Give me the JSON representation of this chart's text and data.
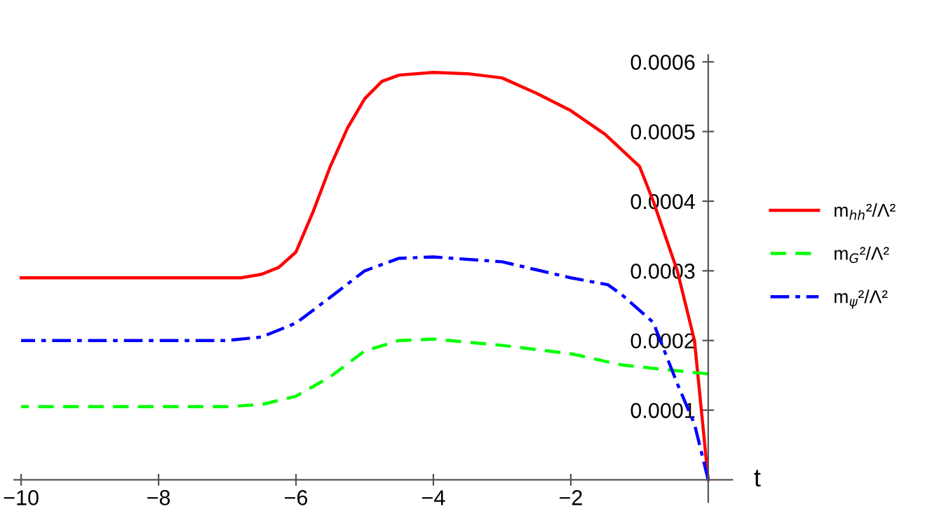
{
  "chart_data": {
    "type": "line",
    "xlabel": "t",
    "xlim": [
      -10.1,
      0.35
    ],
    "ylim": [
      -3.2e-05,
      0.00061
    ],
    "xticks": [
      {
        "value": -10,
        "label": "−10"
      },
      {
        "value": -8,
        "label": "−8"
      },
      {
        "value": -6,
        "label": "−6"
      },
      {
        "value": -4,
        "label": "−4"
      },
      {
        "value": -2,
        "label": "−2"
      }
    ],
    "yticks": [
      0.0001,
      0.0002,
      0.0003,
      0.0004,
      0.0005,
      0.0006
    ],
    "grid": false,
    "legend": "right",
    "marker": "none",
    "series": [
      {
        "name": "m$_{hh}$²/Λ²",
        "color": "#ff0000",
        "line_style": "solid",
        "x": [
          -10,
          -9,
          -8,
          -7,
          -6.8,
          -6.5,
          -6.25,
          -6,
          -5.75,
          -5.5,
          -5.25,
          -5,
          -4.75,
          -4.5,
          -4,
          -3.5,
          -3,
          -2.5,
          -2,
          -1.5,
          -1,
          -0.8,
          -0.45,
          -0.2,
          0
        ],
        "values": [
          0.00029,
          0.00029,
          0.00029,
          0.00029,
          0.00029,
          0.000295,
          0.000305,
          0.000327,
          0.000385,
          0.00045,
          0.000505,
          0.000547,
          0.000572,
          0.000581,
          0.000585,
          0.000583,
          0.000577,
          0.000555,
          0.00053,
          0.000496,
          0.00045,
          0.0004,
          0.0003,
          0.0002,
          0
        ]
      },
      {
        "name": "m$_{G}$²/Λ²",
        "color": "#00ff00",
        "line_style": "dashed",
        "x": [
          -10,
          -9,
          -8,
          -7,
          -6.5,
          -6,
          -5.5,
          -5,
          -4.5,
          -4,
          -3,
          -2,
          -1.26,
          -0.8,
          -0.3,
          0
        ],
        "values": [
          0.000105,
          0.000105,
          0.000105,
          0.000105,
          0.000108,
          0.00012,
          0.000148,
          0.000185,
          0.0002,
          0.000202,
          0.000193,
          0.000181,
          0.000165,
          0.00016,
          0.000155,
          0.000152
        ]
      },
      {
        "name": "m$_{ψ}$²/Λ²",
        "color": "#0000ff",
        "line_style": "dashdot",
        "x": [
          -10,
          -9,
          -8,
          -7,
          -6.5,
          -6,
          -5.5,
          -5,
          -4.5,
          -4,
          -3,
          -2,
          -1.46,
          -1.26,
          -0.8,
          -0.45,
          -0.2,
          0
        ],
        "values": [
          0.0002,
          0.0002,
          0.0002,
          0.0002,
          0.000205,
          0.000225,
          0.000262,
          0.0003,
          0.000318,
          0.00032,
          0.000313,
          0.00029,
          0.00028,
          0.000266,
          0.000226,
          0.000138,
          8e-05,
          0
        ]
      }
    ]
  }
}
